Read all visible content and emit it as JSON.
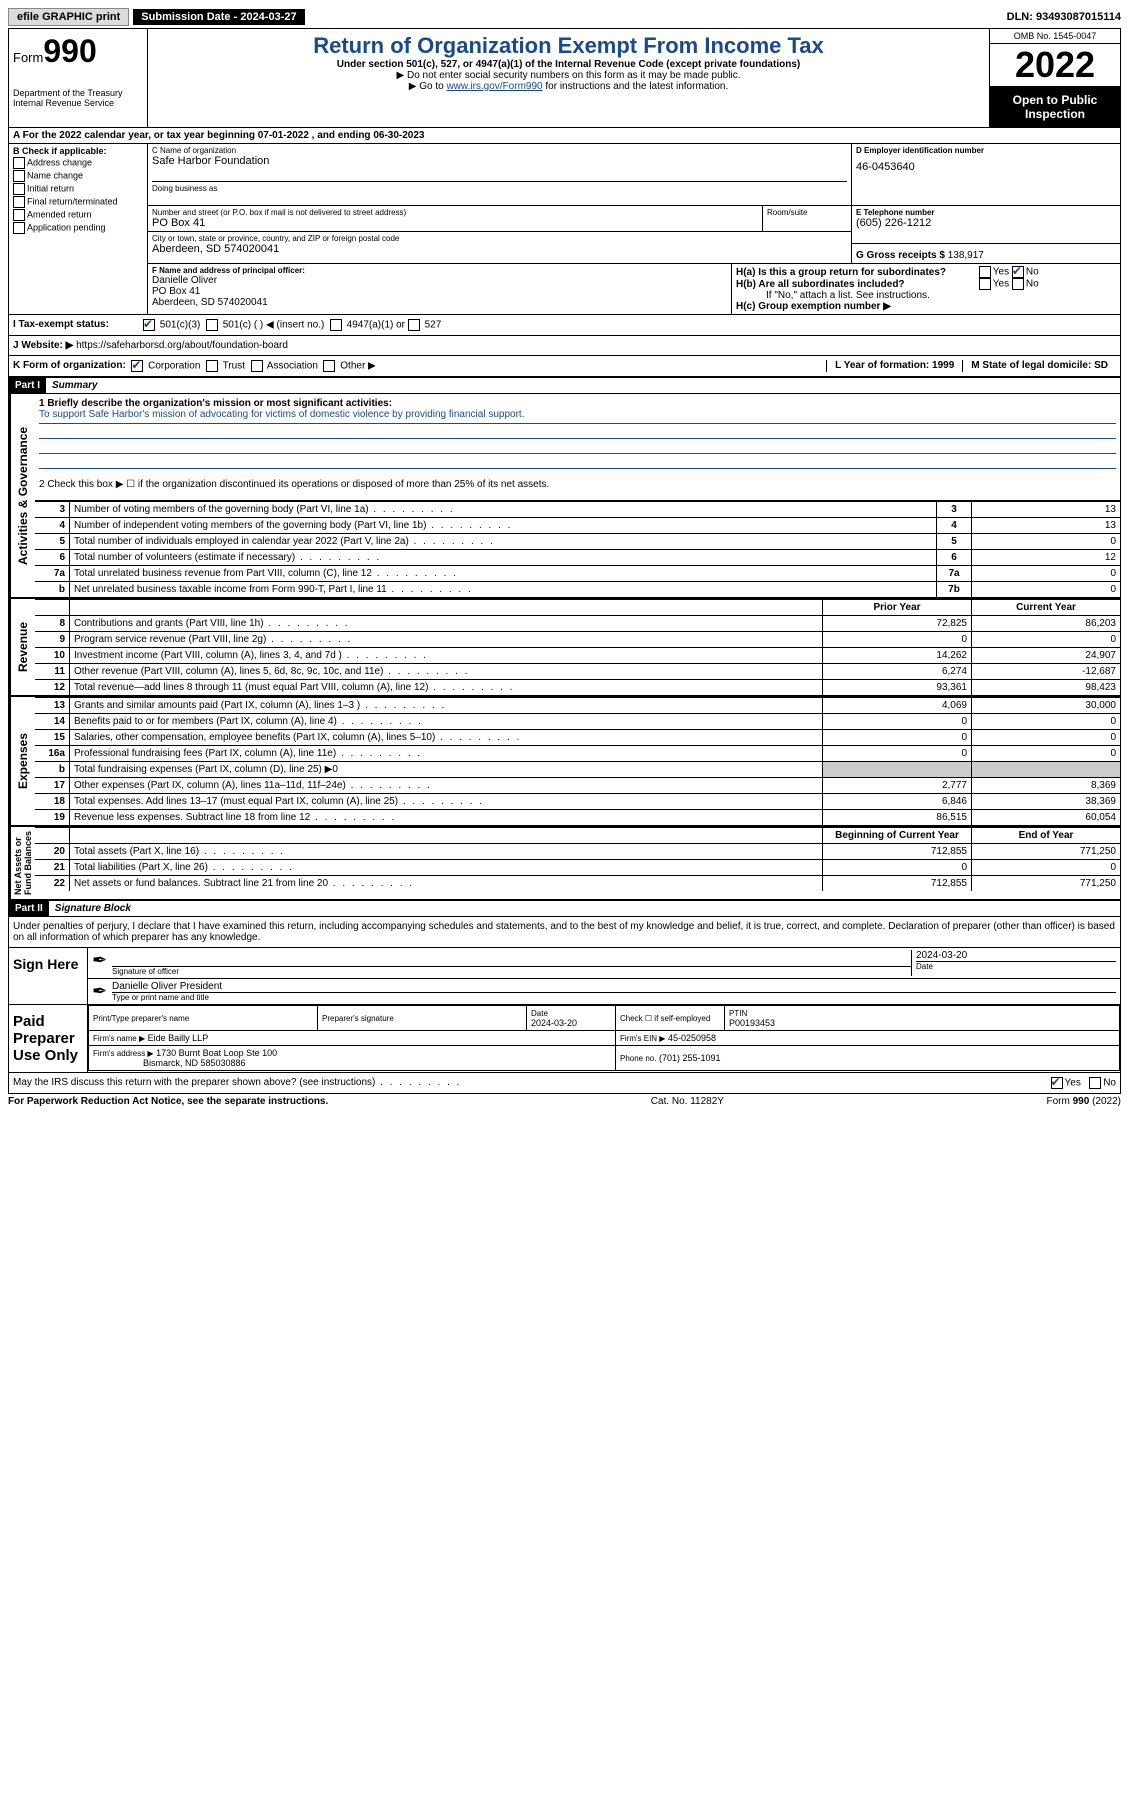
{
  "topbar": {
    "efile": "efile GRAPHIC print",
    "subdate_label": "Submission Date - ",
    "subdate": "2024-03-27",
    "dln_label": "DLN: ",
    "dln": "93493087015114"
  },
  "header": {
    "form_prefix": "Form",
    "form_num": "990",
    "dept": "Department of the Treasury\nInternal Revenue Service",
    "title": "Return of Organization Exempt From Income Tax",
    "sub": "Under section 501(c), 527, or 4947(a)(1) of the Internal Revenue Code (except private foundations)",
    "note1": "▶ Do not enter social security numbers on this form as it may be made public.",
    "note2_pre": "▶ Go to ",
    "note2_link": "www.irs.gov/Form990",
    "note2_post": " for instructions and the latest information.",
    "omb": "OMB No. 1545-0047",
    "year": "2022",
    "open": "Open to Public Inspection"
  },
  "rowA": {
    "text": "A For the 2022 calendar year, or tax year beginning 07-01-2022    , and ending 06-30-2023"
  },
  "boxB": {
    "label": "B Check if applicable:",
    "opts": [
      "Address change",
      "Name change",
      "Initial return",
      "Final return/terminated",
      "Amended return",
      "Application pending"
    ]
  },
  "boxC": {
    "name_lbl": "C Name of organization",
    "name": "Safe Harbor Foundation",
    "dba_lbl": "Doing business as",
    "street_lbl": "Number and street (or P.O. box if mail is not delivered to street address)",
    "room_lbl": "Room/suite",
    "street": "PO Box 41",
    "city_lbl": "City or town, state or province, country, and ZIP or foreign postal code",
    "city": "Aberdeen, SD  574020041"
  },
  "boxD": {
    "lbl": "D Employer identification number",
    "val": "46-0453640"
  },
  "boxE": {
    "lbl": "E Telephone number",
    "val": "(605) 226-1212"
  },
  "boxG": {
    "lbl": "G Gross receipts $ ",
    "val": "138,917"
  },
  "boxF": {
    "lbl": "F Name and address of principal officer:",
    "name": "Danielle Oliver",
    "addr1": "PO Box 41",
    "addr2": "Aberdeen, SD  574020041"
  },
  "boxH": {
    "ha": "H(a)  Is this a group return for subordinates?",
    "hb": "H(b)  Are all subordinates included?",
    "hb_note": "If \"No,\" attach a list. See instructions.",
    "hc": "H(c)  Group exemption number ▶"
  },
  "boxI": {
    "lbl": "I   Tax-exempt status:",
    "opts": [
      "501(c)(3)",
      "501(c) (  ) ◀ (insert no.)",
      "4947(a)(1) or",
      "527"
    ]
  },
  "boxJ": {
    "lbl": "J   Website: ▶",
    "val": "https://safeharborsd.org/about/foundation-board"
  },
  "boxK": {
    "lbl": "K Form of organization:",
    "opts": [
      "Corporation",
      "Trust",
      "Association",
      "Other ▶"
    ],
    "L": "L Year of formation: 1999",
    "M": "M State of legal domicile: SD"
  },
  "part1": {
    "hdr": "Part I",
    "title": "Summary",
    "q1": "1  Briefly describe the organization's mission or most significant activities:",
    "mission": "To support Safe Harbor's mission of advocating for victims of domestic violence by providing financial support.",
    "q2": "2   Check this box ▶ ☐  if the organization discontinued its operations or disposed of more than 25% of its net assets."
  },
  "gov_rows": [
    {
      "n": "3",
      "d": "Number of voting members of the governing body (Part VI, line 1a)",
      "b": "3",
      "v": "13"
    },
    {
      "n": "4",
      "d": "Number of independent voting members of the governing body (Part VI, line 1b)",
      "b": "4",
      "v": "13"
    },
    {
      "n": "5",
      "d": "Total number of individuals employed in calendar year 2022 (Part V, line 2a)",
      "b": "5",
      "v": "0"
    },
    {
      "n": "6",
      "d": "Total number of volunteers (estimate if necessary)",
      "b": "6",
      "v": "12"
    },
    {
      "n": "7a",
      "d": "Total unrelated business revenue from Part VIII, column (C), line 12",
      "b": "7a",
      "v": "0"
    },
    {
      "n": "b",
      "d": "Net unrelated business taxable income from Form 990-T, Part I, line 11",
      "b": "7b",
      "v": "0"
    }
  ],
  "col_hdr": {
    "prior": "Prior Year",
    "curr": "Current Year"
  },
  "rev_rows": [
    {
      "n": "8",
      "d": "Contributions and grants (Part VIII, line 1h)",
      "p": "72,825",
      "c": "86,203"
    },
    {
      "n": "9",
      "d": "Program service revenue (Part VIII, line 2g)",
      "p": "0",
      "c": "0"
    },
    {
      "n": "10",
      "d": "Investment income (Part VIII, column (A), lines 3, 4, and 7d )",
      "p": "14,262",
      "c": "24,907"
    },
    {
      "n": "11",
      "d": "Other revenue (Part VIII, column (A), lines 5, 6d, 8c, 9c, 10c, and 11e)",
      "p": "6,274",
      "c": "-12,687"
    },
    {
      "n": "12",
      "d": "Total revenue—add lines 8 through 11 (must equal Part VIII, column (A), line 12)",
      "p": "93,361",
      "c": "98,423"
    }
  ],
  "exp_rows": [
    {
      "n": "13",
      "d": "Grants and similar amounts paid (Part IX, column (A), lines 1–3 )",
      "p": "4,069",
      "c": "30,000"
    },
    {
      "n": "14",
      "d": "Benefits paid to or for members (Part IX, column (A), line 4)",
      "p": "0",
      "c": "0"
    },
    {
      "n": "15",
      "d": "Salaries, other compensation, employee benefits (Part IX, column (A), lines 5–10)",
      "p": "0",
      "c": "0"
    },
    {
      "n": "16a",
      "d": "Professional fundraising fees (Part IX, column (A), line 11e)",
      "p": "0",
      "c": "0"
    },
    {
      "n": "b",
      "d": "Total fundraising expenses (Part IX, column (D), line 25) ▶0",
      "p": "",
      "c": "",
      "grey": true
    },
    {
      "n": "17",
      "d": "Other expenses (Part IX, column (A), lines 11a–11d, 11f–24e)",
      "p": "2,777",
      "c": "8,369"
    },
    {
      "n": "18",
      "d": "Total expenses. Add lines 13–17 (must equal Part IX, column (A), line 25)",
      "p": "6,846",
      "c": "38,369"
    },
    {
      "n": "19",
      "d": "Revenue less expenses. Subtract line 18 from line 12",
      "p": "86,515",
      "c": "60,054"
    }
  ],
  "net_hdr": {
    "prior": "Beginning of Current Year",
    "curr": "End of Year"
  },
  "net_rows": [
    {
      "n": "20",
      "d": "Total assets (Part X, line 16)",
      "p": "712,855",
      "c": "771,250"
    },
    {
      "n": "21",
      "d": "Total liabilities (Part X, line 26)",
      "p": "0",
      "c": "0"
    },
    {
      "n": "22",
      "d": "Net assets or fund balances. Subtract line 21 from line 20",
      "p": "712,855",
      "c": "771,250"
    }
  ],
  "part2": {
    "hdr": "Part II",
    "title": "Signature Block",
    "decl": "Under penalties of perjury, I declare that I have examined this return, including accompanying schedules and statements, and to the best of my knowledge and belief, it is true, correct, and complete. Declaration of preparer (other than officer) is based on all information of which preparer has any knowledge."
  },
  "sign": {
    "here": "Sign Here",
    "sig_lbl": "Signature of officer",
    "date_lbl": "Date",
    "date": "2024-03-20",
    "name": "Danielle Oliver  President",
    "name_lbl": "Type or print name and title"
  },
  "prep": {
    "here": "Paid Preparer Use Only",
    "h1": "Print/Type preparer's name",
    "h2": "Preparer's signature",
    "h3": "Date",
    "h3v": "2024-03-20",
    "h4": "Check ☐ if self-employed",
    "h5": "PTIN",
    "h5v": "P00193453",
    "firm_lbl": "Firm's name    ▶",
    "firm": "Eide Bailly LLP",
    "ein_lbl": "Firm's EIN ▶",
    "ein": "45-0250958",
    "addr_lbl": "Firm's address ▶",
    "addr": "1730 Burnt Boat Loop Ste 100",
    "addr2": "Bismarck, ND  585030886",
    "phone_lbl": "Phone no.",
    "phone": "(701) 255-1091"
  },
  "discuss": "May the IRS discuss this return with the preparer shown above? (see instructions)",
  "footer": {
    "l": "For Paperwork Reduction Act Notice, see the separate instructions.",
    "m": "Cat. No. 11282Y",
    "r": "Form 990 (2022)"
  },
  "colors": {
    "link": "#1a4a8a",
    "grey": "#cccccc"
  }
}
